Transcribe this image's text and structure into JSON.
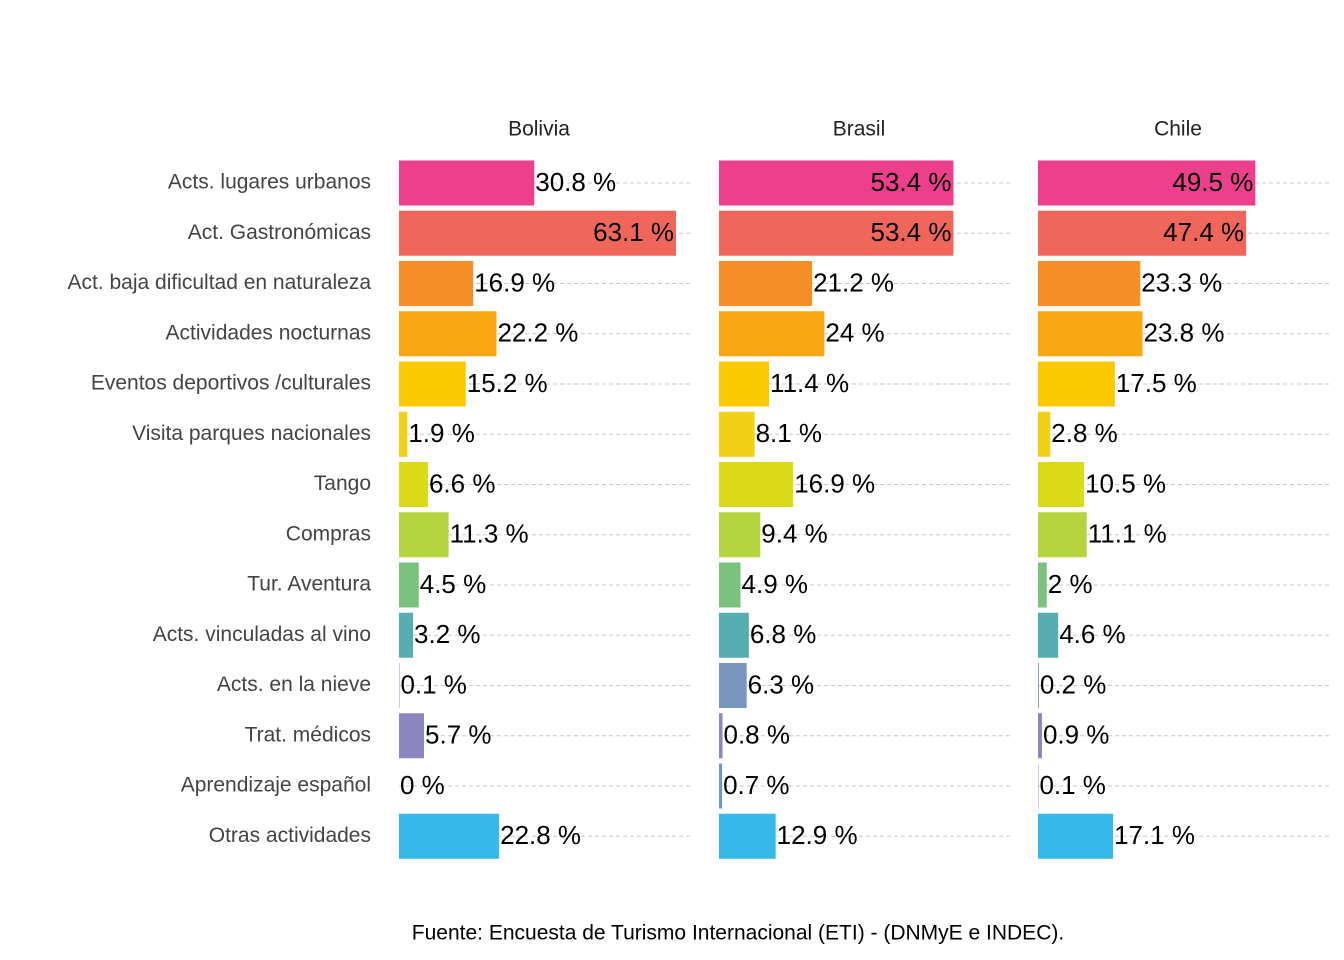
{
  "chart_data": {
    "type": "bar",
    "categories": [
      "Acts. lugares urbanos",
      "Act. Gastronómicas",
      "Act. baja dificultad en naturaleza",
      "Actividades nocturnas",
      "Eventos deportivos /culturales",
      "Visita parques nacionales",
      "Tango",
      "Compras",
      "Tur. Aventura",
      "Acts. vinculadas al vino",
      "Acts. en la nieve",
      "Trat. médicos",
      "Aprendizaje español",
      "Otras actividades"
    ],
    "colors": [
      "#ee3f8d",
      "#f0665a",
      "#f68e27",
      "#f9a813",
      "#fcc800",
      "#f2d114",
      "#dcdb1a",
      "#b6d43f",
      "#7bc27f",
      "#56aeb0",
      "#7a95bc",
      "#8b86c0",
      "#6e98c8",
      "#36b9e8"
    ],
    "xlim": [
      0,
      66.5
    ],
    "series": [
      {
        "name": "Bolivia",
        "values": [
          30.8,
          63.1,
          16.9,
          22.2,
          15.2,
          1.9,
          6.6,
          11.3,
          4.5,
          3.2,
          0.1,
          5.7,
          0,
          22.8
        ],
        "value_labels": [
          "30.8 %",
          "63.1 %",
          "16.9 %",
          "22.2 %",
          "15.2 %",
          "1.9 %",
          "6.6 %",
          "11.3 %",
          "4.5 %",
          "3.2 %",
          "0.1 %",
          "5.7 %",
          "0 %",
          "22.8 %"
        ]
      },
      {
        "name": "Brasil",
        "values": [
          53.4,
          53.4,
          21.2,
          24,
          11.4,
          8.1,
          16.9,
          9.4,
          4.9,
          6.8,
          6.3,
          0.8,
          0.7,
          12.9
        ],
        "value_labels": [
          "53.4 %",
          "53.4 %",
          "21.2 %",
          "24 %",
          "11.4 %",
          "8.1 %",
          "16.9 %",
          "9.4 %",
          "4.9 %",
          "6.8 %",
          "6.3 %",
          "0.8 %",
          "0.7 %",
          "12.9 %"
        ]
      },
      {
        "name": "Chile",
        "values": [
          49.5,
          47.4,
          23.3,
          23.8,
          17.5,
          2.8,
          10.5,
          11.1,
          2,
          4.6,
          0.2,
          0.9,
          0.1,
          17.1
        ],
        "value_labels": [
          "49.5 %",
          "47.4 %",
          "23.3 %",
          "23.8 %",
          "17.5 %",
          "2.8 %",
          "10.5 %",
          "11.1 %",
          "2 %",
          "4.6 %",
          "0.2 %",
          "0.9 %",
          "0.1 %",
          "17.1 %"
        ]
      }
    ],
    "caption": "Fuente: Encuesta de Turismo Internacional (ETI) - (DNMyE e INDEC)."
  }
}
